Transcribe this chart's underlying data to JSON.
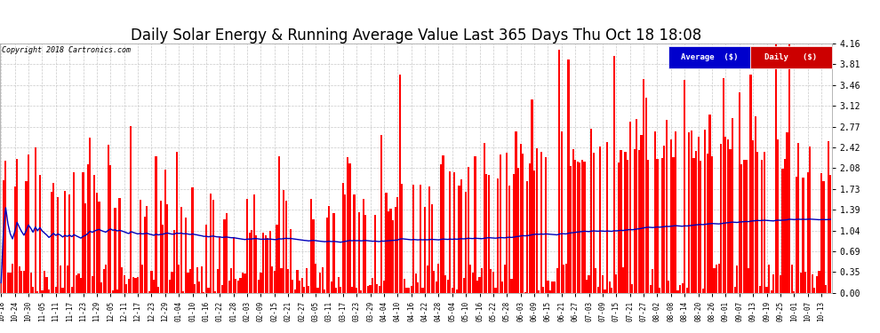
{
  "title": "Daily Solar Energy & Running Average Value Last 365 Days Thu Oct 18 18:08",
  "copyright": "Copyright 2018 Cartronics.com",
  "ylim": [
    0.0,
    4.16
  ],
  "yticks": [
    0.0,
    0.35,
    0.69,
    1.04,
    1.39,
    1.73,
    2.08,
    2.42,
    2.77,
    3.12,
    3.46,
    3.81,
    4.16
  ],
  "bar_color": "#ff0000",
  "avg_color": "#0000bb",
  "background_color": "#ffffff",
  "grid_color": "#bbbbbb",
  "title_fontsize": 12,
  "legend_label_avg": "Average  ($)",
  "legend_label_daily": "Daily   ($)",
  "legend_color_avg": "#0000cc",
  "legend_color_daily": "#cc0000",
  "n_bars": 365,
  "xtick_labels": [
    "10-18",
    "10-24",
    "10-30",
    "11-05",
    "11-11",
    "11-17",
    "11-23",
    "11-29",
    "12-05",
    "12-11",
    "12-17",
    "12-23",
    "12-29",
    "01-04",
    "01-10",
    "01-16",
    "01-22",
    "01-28",
    "02-03",
    "02-09",
    "02-15",
    "02-21",
    "02-27",
    "03-05",
    "03-11",
    "03-17",
    "03-23",
    "03-29",
    "04-04",
    "04-10",
    "04-16",
    "04-22",
    "04-28",
    "05-04",
    "05-10",
    "05-16",
    "05-22",
    "05-28",
    "06-03",
    "06-09",
    "06-15",
    "06-21",
    "06-27",
    "07-03",
    "07-09",
    "07-15",
    "07-21",
    "07-27",
    "08-02",
    "08-08",
    "08-14",
    "08-20",
    "08-26",
    "09-01",
    "09-07",
    "09-13",
    "09-19",
    "09-25",
    "10-01",
    "10-07",
    "10-13"
  ]
}
